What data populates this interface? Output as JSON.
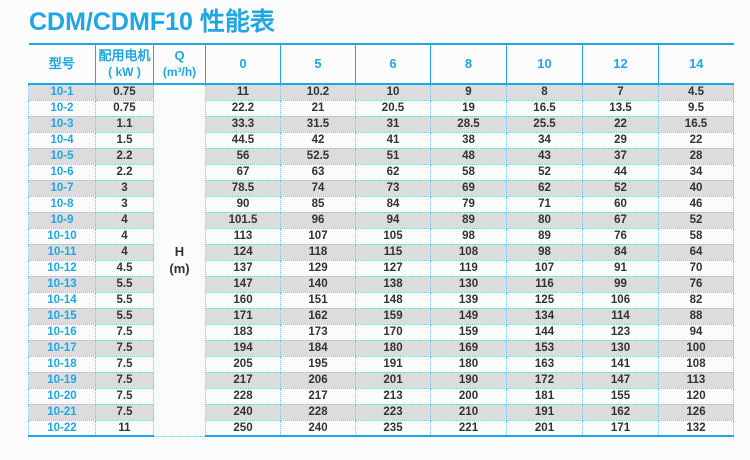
{
  "title": "CDM/CDMF10 性能表",
  "accent_color": "#1ea7e4",
  "stripe_color": "#dcdcdc",
  "dotted_border_color": "#6cc9ef",
  "chart_data": {
    "type": "table",
    "title": "CDM/CDMF10 性能表",
    "header": {
      "model_label": "型号",
      "motor_label_line1": "配用电机",
      "motor_label_line2": "( kW )",
      "flow_label_line1": "Q",
      "flow_label_line2": "(m³/h)",
      "flow_values": [
        "0",
        "5",
        "6",
        "8",
        "10",
        "12",
        "14"
      ],
      "head_label_line1": "H",
      "head_label_line2": "(m)"
    },
    "rows": [
      {
        "model": "10-1",
        "kw": "0.75",
        "h": [
          "11",
          "10.2",
          "10",
          "9",
          "8",
          "7",
          "4.5"
        ]
      },
      {
        "model": "10-2",
        "kw": "0.75",
        "h": [
          "22.2",
          "21",
          "20.5",
          "19",
          "16.5",
          "13.5",
          "9.5"
        ]
      },
      {
        "model": "10-3",
        "kw": "1.1",
        "h": [
          "33.3",
          "31.5",
          "31",
          "28.5",
          "25.5",
          "22",
          "16.5"
        ]
      },
      {
        "model": "10-4",
        "kw": "1.5",
        "h": [
          "44.5",
          "42",
          "41",
          "38",
          "34",
          "29",
          "22"
        ]
      },
      {
        "model": "10-5",
        "kw": "2.2",
        "h": [
          "56",
          "52.5",
          "51",
          "48",
          "43",
          "37",
          "28"
        ]
      },
      {
        "model": "10-6",
        "kw": "2.2",
        "h": [
          "67",
          "63",
          "62",
          "58",
          "52",
          "44",
          "34"
        ]
      },
      {
        "model": "10-7",
        "kw": "3",
        "h": [
          "78.5",
          "74",
          "73",
          "69",
          "62",
          "52",
          "40"
        ]
      },
      {
        "model": "10-8",
        "kw": "3",
        "h": [
          "90",
          "85",
          "84",
          "79",
          "71",
          "60",
          "46"
        ]
      },
      {
        "model": "10-9",
        "kw": "4",
        "h": [
          "101.5",
          "96",
          "94",
          "89",
          "80",
          "67",
          "52"
        ]
      },
      {
        "model": "10-10",
        "kw": "4",
        "h": [
          "113",
          "107",
          "105",
          "98",
          "89",
          "76",
          "58"
        ]
      },
      {
        "model": "10-11",
        "kw": "4",
        "h": [
          "124",
          "118",
          "115",
          "108",
          "98",
          "84",
          "64"
        ]
      },
      {
        "model": "10-12",
        "kw": "4.5",
        "h": [
          "137",
          "129",
          "127",
          "119",
          "107",
          "91",
          "70"
        ]
      },
      {
        "model": "10-13",
        "kw": "5.5",
        "h": [
          "147",
          "140",
          "138",
          "130",
          "116",
          "99",
          "76"
        ]
      },
      {
        "model": "10-14",
        "kw": "5.5",
        "h": [
          "160",
          "151",
          "148",
          "139",
          "125",
          "106",
          "82"
        ]
      },
      {
        "model": "10-15",
        "kw": "5.5",
        "h": [
          "171",
          "162",
          "159",
          "149",
          "134",
          "114",
          "88"
        ]
      },
      {
        "model": "10-16",
        "kw": "7.5",
        "h": [
          "183",
          "173",
          "170",
          "159",
          "144",
          "123",
          "94"
        ]
      },
      {
        "model": "10-17",
        "kw": "7.5",
        "h": [
          "194",
          "184",
          "180",
          "169",
          "153",
          "130",
          "100"
        ]
      },
      {
        "model": "10-18",
        "kw": "7.5",
        "h": [
          "205",
          "195",
          "191",
          "180",
          "163",
          "141",
          "108"
        ]
      },
      {
        "model": "10-19",
        "kw": "7.5",
        "h": [
          "217",
          "206",
          "201",
          "190",
          "172",
          "147",
          "113"
        ]
      },
      {
        "model": "10-20",
        "kw": "7.5",
        "h": [
          "228",
          "217",
          "213",
          "200",
          "181",
          "155",
          "120"
        ]
      },
      {
        "model": "10-21",
        "kw": "7.5",
        "h": [
          "240",
          "228",
          "223",
          "210",
          "191",
          "162",
          "126"
        ]
      },
      {
        "model": "10-22",
        "kw": "11",
        "h": [
          "250",
          "240",
          "235",
          "221",
          "201",
          "171",
          "132"
        ]
      }
    ]
  }
}
